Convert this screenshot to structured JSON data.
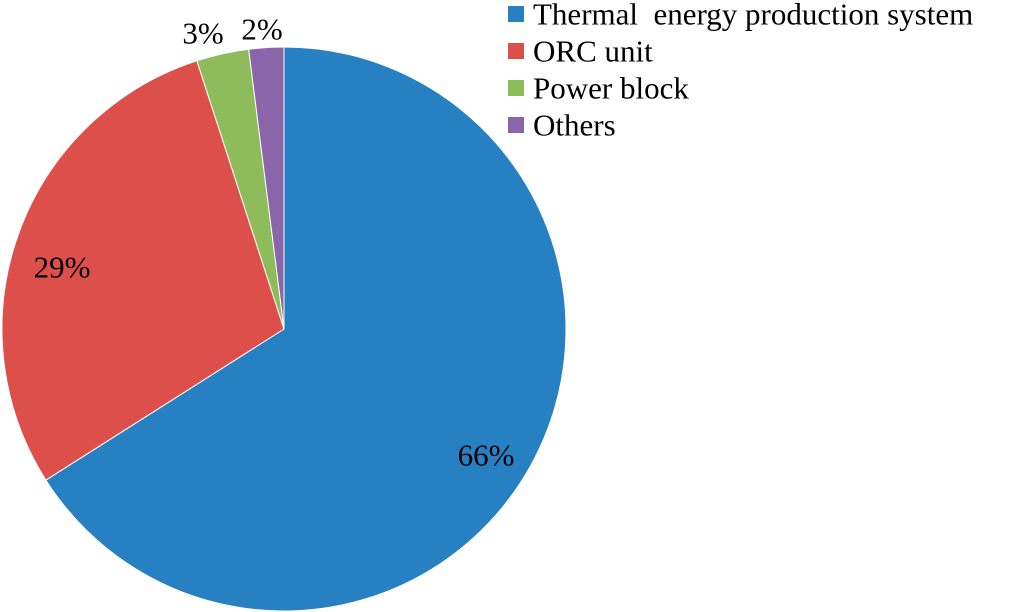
{
  "chart_data": {
    "type": "pie",
    "categories": [
      "Thermal  energy production system",
      "ORC unit",
      "Power block",
      "Others"
    ],
    "values": [
      66,
      29,
      3,
      2
    ],
    "value_labels": [
      "66%",
      "29%",
      "3%",
      "2%"
    ],
    "colors": [
      "#2680c2",
      "#dc4f4b",
      "#8fbc5a",
      "#8a65a9"
    ],
    "start_angle_deg": 0,
    "direction": "clockwise",
    "legend_position": "top-right",
    "title": ""
  }
}
